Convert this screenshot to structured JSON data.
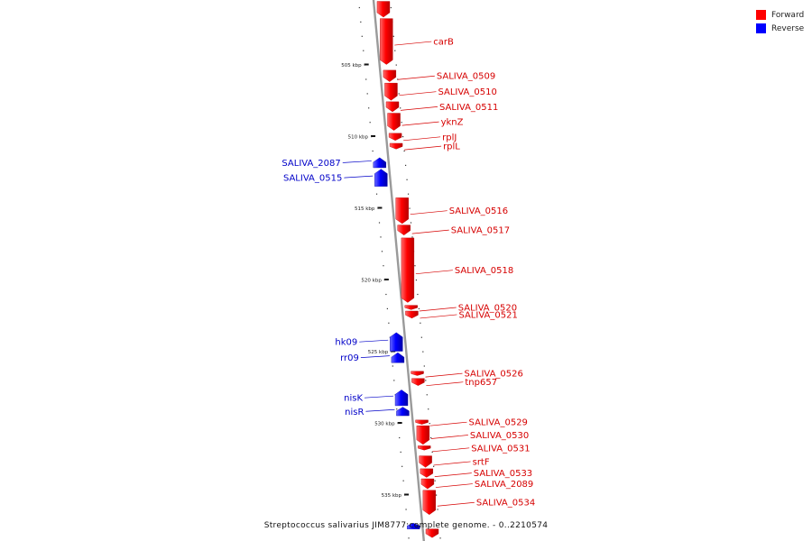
{
  "colors": {
    "forward": "#ff0000",
    "forward_dark": "#b80000",
    "forward_light": "#ff6a6a",
    "reverse": "#0000ff",
    "reverse_dark": "#0000a8",
    "reverse_light": "#6a6aff",
    "backbone": "#9a9a9a",
    "forward_label": "#d60000",
    "reverse_label": "#0000c8"
  },
  "legend": {
    "forward_label": "Forward",
    "reverse_label": "Reverse"
  },
  "caption": "Streptococcus salivarius JIM8777 complete genome. - 0..2210574",
  "axis_ticks": [
    {
      "label": "505 kbp",
      "kbp": 505
    },
    {
      "label": "510 kbp",
      "kbp": 510
    },
    {
      "label": "515 kbp",
      "kbp": 515
    },
    {
      "label": "520 kbp",
      "kbp": 520
    },
    {
      "label": "525 kbp",
      "kbp": 525
    },
    {
      "label": "530 kbp",
      "kbp": 530
    },
    {
      "label": "535 kbp",
      "kbp": 535
    }
  ],
  "features": [
    {
      "name": "",
      "strand": "forward",
      "start": 500.6,
      "end": 501.7
    },
    {
      "name": "carB",
      "strand": "forward",
      "start": 501.8,
      "end": 505.0
    },
    {
      "name": "SALIVA_0509",
      "strand": "forward",
      "start": 505.4,
      "end": 506.2
    },
    {
      "name": "SALIVA_0510",
      "strand": "forward",
      "start": 506.3,
      "end": 507.5
    },
    {
      "name": "SALIVA_0511",
      "strand": "forward",
      "start": 507.6,
      "end": 508.3
    },
    {
      "name": "yknZ",
      "strand": "forward",
      "start": 508.4,
      "end": 509.6
    },
    {
      "name": "rplJ",
      "strand": "forward",
      "start": 509.8,
      "end": 510.3
    },
    {
      "name": "rplL",
      "strand": "forward",
      "start": 510.5,
      "end": 510.9
    },
    {
      "name": "SALIVA_2087",
      "strand": "reverse",
      "start": 511.5,
      "end": 512.2
    },
    {
      "name": "SALIVA_0515",
      "strand": "reverse",
      "start": 512.3,
      "end": 513.5
    },
    {
      "name": "SALIVA_0516",
      "strand": "forward",
      "start": 514.3,
      "end": 516.1
    },
    {
      "name": "SALIVA_0517",
      "strand": "forward",
      "start": 516.2,
      "end": 516.9
    },
    {
      "name": "SALIVA_0518",
      "strand": "forward",
      "start": 517.1,
      "end": 521.6
    },
    {
      "name": "SALIVA_0520",
      "strand": "forward",
      "start": 521.8,
      "end": 522.1
    },
    {
      "name": "SALIVA_0521",
      "strand": "forward",
      "start": 522.2,
      "end": 522.7
    },
    {
      "name": "hk09",
      "strand": "reverse",
      "start": 523.7,
      "end": 525.0
    },
    {
      "name": "rr09",
      "strand": "reverse",
      "start": 525.1,
      "end": 525.8
    },
    {
      "name": "SALIVA_0526",
      "strand": "forward",
      "start": 526.4,
      "end": 526.7
    },
    {
      "name": "tnp657",
      "strand": "forward",
      "start": 526.9,
      "end": 527.4
    },
    {
      "name": "nisK",
      "strand": "reverse",
      "start": 527.7,
      "end": 528.8
    },
    {
      "name": "nisR",
      "strand": "reverse",
      "start": 528.9,
      "end": 529.5
    },
    {
      "name": "SALIVA_0529",
      "strand": "forward",
      "start": 529.8,
      "end": 530.1
    },
    {
      "name": "SALIVA_0530",
      "strand": "forward",
      "start": 530.2,
      "end": 531.5
    },
    {
      "name": "SALIVA_0531",
      "strand": "forward",
      "start": 531.6,
      "end": 531.9
    },
    {
      "name": "srtF",
      "strand": "forward",
      "start": 532.3,
      "end": 533.1
    },
    {
      "name": "SALIVA_0533",
      "strand": "forward",
      "start": 533.2,
      "end": 533.8
    },
    {
      "name": "SALIVA_2089",
      "strand": "forward",
      "start": 533.9,
      "end": 534.6
    },
    {
      "name": "SALIVA_0534",
      "strand": "forward",
      "start": 534.7,
      "end": 536.4
    },
    {
      "name": "",
      "strand": "reverse",
      "start": 537.0,
      "end": 537.4
    },
    {
      "name": "",
      "strand": "forward",
      "start": 537.4,
      "end": 538.0
    }
  ]
}
